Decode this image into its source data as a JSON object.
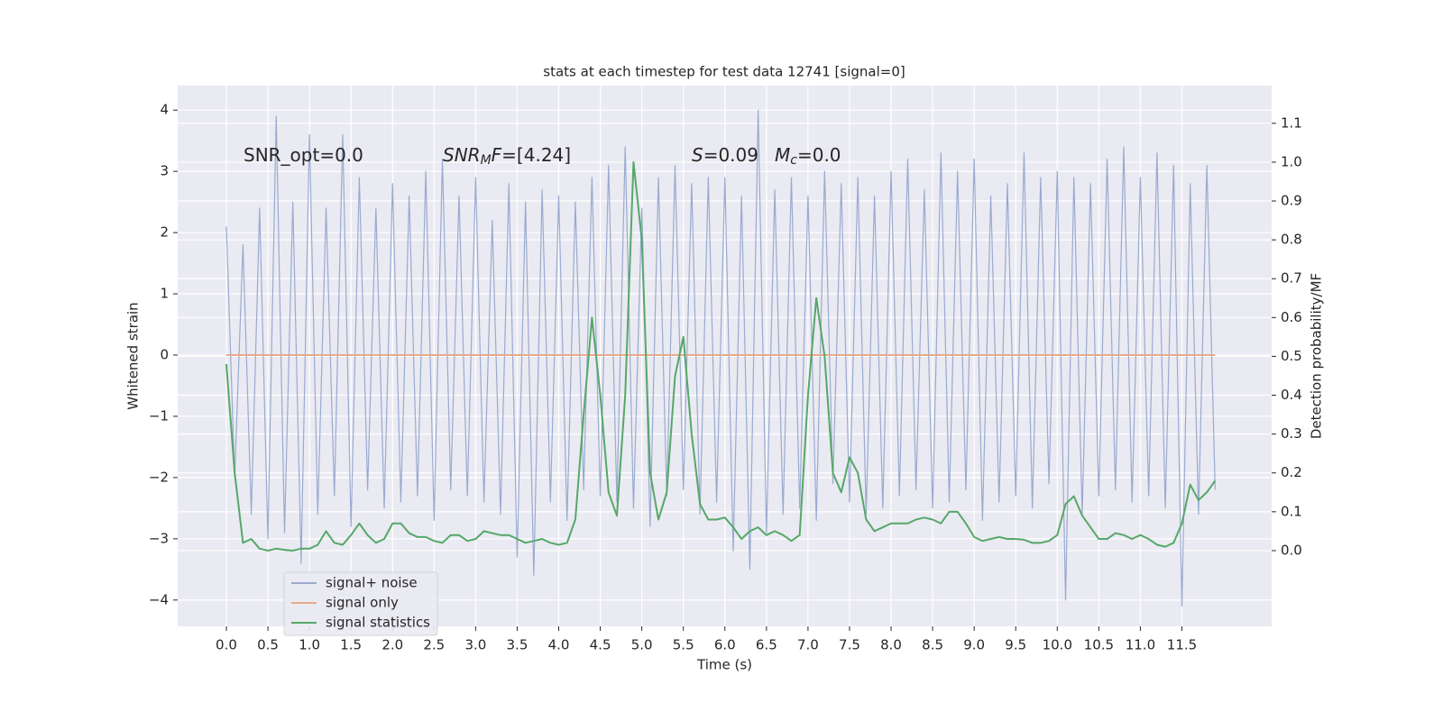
{
  "chart_data": {
    "type": "line",
    "title": "stats at each timestep for test data 12741 [signal=0]",
    "xlabel": "Time (s)",
    "ylabel": "Whitened strain",
    "y2label": "Detection probability/MF",
    "grid": true,
    "legend": "lower left",
    "xlim": [
      -0.586,
      12.58
    ],
    "ylim": [
      -4.43,
      4.4
    ],
    "y2lim": [
      -0.195,
      1.197
    ],
    "xticks": [
      {
        "value": 0,
        "label": "0.0"
      },
      0.5,
      {
        "value": 1,
        "label": "1.0"
      },
      1.5,
      {
        "value": 2,
        "label": "2.0"
      },
      2.5,
      {
        "value": 3,
        "label": "3.0"
      },
      3.5,
      {
        "value": 4,
        "label": "4.0"
      },
      4.5,
      {
        "value": 5,
        "label": "5.0"
      },
      5.5,
      {
        "value": 6,
        "label": "6.0"
      },
      6.5,
      {
        "value": 7,
        "label": "7.0"
      },
      7.5,
      {
        "value": 8,
        "label": "8.0"
      },
      8.5,
      {
        "value": 9,
        "label": "9.0"
      },
      9.5,
      {
        "value": 10,
        "label": "10.0"
      },
      10.5,
      {
        "value": 11,
        "label": "11.0"
      },
      11.5
    ],
    "yticks": [
      {
        "value": -4,
        "label": "−4"
      },
      {
        "value": -3,
        "label": "−3"
      },
      {
        "value": -2,
        "label": "−2"
      },
      {
        "value": -1,
        "label": "−1"
      },
      0,
      1,
      2,
      3,
      4
    ],
    "y2ticks": [
      {
        "value": 0,
        "label": "0.0"
      },
      0.1,
      0.2,
      0.3,
      0.4,
      0.5,
      0.6,
      0.7,
      0.8,
      0.9,
      {
        "value": 1,
        "label": "1.0"
      },
      1.1
    ],
    "annotations": [
      {
        "parts": [
          {
            "text": "SNR_opt=0.0"
          }
        ]
      },
      {
        "parts": [
          {
            "text": "SNR",
            "italic": true
          },
          {
            "text": "M",
            "italic": true,
            "sub": true
          },
          {
            "text": "F",
            "italic": true
          },
          {
            "text": "=[4.24]"
          }
        ]
      },
      {
        "parts": [
          {
            "text": "S",
            "italic": true
          },
          {
            "text": "=0.09"
          }
        ]
      },
      {
        "parts": [
          {
            "text": "M",
            "italic": true
          },
          {
            "text": "c",
            "italic": true,
            "sub": true
          },
          {
            "text": "=0.0"
          }
        ]
      }
    ],
    "x": [
      0.0,
      0.1,
      0.2,
      0.3,
      0.4,
      0.5,
      0.6,
      0.7,
      0.8,
      0.9,
      1.0,
      1.1,
      1.2,
      1.3,
      1.4,
      1.5,
      1.6,
      1.7,
      1.8,
      1.9,
      2.0,
      2.1,
      2.2,
      2.3,
      2.4,
      2.5,
      2.6,
      2.7,
      2.8,
      2.9,
      3.0,
      3.1,
      3.2,
      3.3,
      3.4,
      3.5,
      3.6,
      3.7,
      3.8,
      3.9,
      4.0,
      4.1,
      4.2,
      4.3,
      4.4,
      4.5,
      4.6,
      4.7,
      4.8,
      4.9,
      5.0,
      5.1,
      5.2,
      5.3,
      5.4,
      5.5,
      5.6,
      5.7,
      5.8,
      5.9,
      6.0,
      6.1,
      6.2,
      6.3,
      6.4,
      6.5,
      6.6,
      6.7,
      6.8,
      6.9,
      7.0,
      7.1,
      7.2,
      7.3,
      7.4,
      7.5,
      7.6,
      7.7,
      7.8,
      7.9,
      8.0,
      8.1,
      8.2,
      8.3,
      8.4,
      8.5,
      8.6,
      8.7,
      8.8,
      8.9,
      9.0,
      9.1,
      9.2,
      9.3,
      9.4,
      9.5,
      9.6,
      9.7,
      9.8,
      9.9,
      10.0,
      10.1,
      10.2,
      10.3,
      10.4,
      10.5,
      10.6,
      10.7,
      10.8,
      10.9,
      11.0,
      11.1,
      11.2,
      11.3,
      11.4,
      11.5,
      11.6,
      11.7,
      11.8,
      11.9
    ],
    "series": [
      {
        "name": "signal+ noise",
        "color": "#9aaad0",
        "values": [
          2.1,
          -2.0,
          1.8,
          -2.6,
          2.4,
          -3.0,
          3.9,
          -2.9,
          2.5,
          -3.4,
          3.6,
          -2.6,
          2.4,
          -2.3,
          3.6,
          -2.8,
          2.9,
          -2.2,
          2.4,
          -2.5,
          2.8,
          -2.4,
          2.6,
          -2.3,
          3.0,
          -2.7,
          3.2,
          -2.2,
          2.6,
          -2.3,
          2.9,
          -2.4,
          2.2,
          -2.6,
          2.8,
          -3.3,
          2.5,
          -3.6,
          2.7,
          -2.4,
          2.6,
          -2.7,
          2.5,
          -2.2,
          2.9,
          -2.3,
          3.1,
          -2.4,
          3.4,
          -2.5,
          2.4,
          -2.8,
          2.9,
          -2.3,
          3.1,
          -2.2,
          2.8,
          -2.6,
          2.9,
          -2.4,
          2.9,
          -3.2,
          2.6,
          -3.5,
          4.0,
          -2.9,
          2.7,
          -2.6,
          2.9,
          -2.5,
          2.6,
          -2.7,
          3.0,
          -2.1,
          2.8,
          -2.4,
          2.9,
          -2.6,
          2.6,
          -2.5,
          3.0,
          -2.3,
          3.2,
          -2.2,
          2.7,
          -2.5,
          3.3,
          -2.4,
          3.0,
          -2.2,
          3.2,
          -2.7,
          2.6,
          -2.4,
          2.8,
          -2.3,
          3.3,
          -2.5,
          2.9,
          -2.1,
          3.0,
          -4.0,
          2.9,
          -2.6,
          2.8,
          -2.3,
          3.2,
          -2.2,
          3.4,
          -2.4,
          2.9,
          -2.3,
          3.3,
          -2.5,
          3.1,
          -4.1,
          2.8,
          -2.6,
          3.1,
          -2.2
        ]
      },
      {
        "name": "signal only",
        "color": "#e8a98c",
        "values": [
          0,
          0,
          0,
          0,
          0,
          0,
          0,
          0,
          0,
          0,
          0,
          0,
          0,
          0,
          0,
          0,
          0,
          0,
          0,
          0,
          0,
          0,
          0,
          0,
          0,
          0,
          0,
          0,
          0,
          0,
          0,
          0,
          0,
          0,
          0,
          0,
          0,
          0,
          0,
          0,
          0,
          0,
          0,
          0,
          0,
          0,
          0,
          0,
          0,
          0,
          0,
          0,
          0,
          0,
          0,
          0,
          0,
          0,
          0,
          0,
          0,
          0,
          0,
          0,
          0,
          0,
          0,
          0,
          0,
          0,
          0,
          0,
          0,
          0,
          0,
          0,
          0,
          0,
          0,
          0,
          0,
          0,
          0,
          0,
          0,
          0,
          0,
          0,
          0,
          0,
          0,
          0,
          0,
          0,
          0,
          0,
          0,
          0,
          0,
          0,
          0,
          0,
          0,
          0,
          0,
          0,
          0,
          0,
          0,
          0,
          0,
          0,
          0,
          0,
          0,
          0,
          0,
          0,
          0,
          0
        ]
      },
      {
        "name": "signal statistics",
        "color": "#55a868",
        "axis": "y2",
        "values": [
          0.48,
          0.2,
          0.02,
          0.03,
          0.005,
          0.0,
          0.005,
          0.002,
          0.0,
          0.005,
          0.005,
          0.015,
          0.05,
          0.02,
          0.015,
          0.04,
          0.07,
          0.04,
          0.02,
          0.03,
          0.07,
          0.07,
          0.045,
          0.035,
          0.035,
          0.025,
          0.02,
          0.04,
          0.04,
          0.025,
          0.03,
          0.05,
          0.045,
          0.04,
          0.04,
          0.03,
          0.02,
          0.025,
          0.03,
          0.02,
          0.015,
          0.02,
          0.08,
          0.35,
          0.6,
          0.4,
          0.15,
          0.09,
          0.4,
          1.0,
          0.8,
          0.2,
          0.08,
          0.15,
          0.45,
          0.55,
          0.3,
          0.12,
          0.08,
          0.08,
          0.085,
          0.06,
          0.03,
          0.05,
          0.06,
          0.04,
          0.05,
          0.04,
          0.025,
          0.04,
          0.4,
          0.65,
          0.5,
          0.2,
          0.15,
          0.24,
          0.2,
          0.08,
          0.05,
          0.06,
          0.07,
          0.07,
          0.07,
          0.08,
          0.085,
          0.08,
          0.07,
          0.1,
          0.1,
          0.07,
          0.035,
          0.025,
          0.03,
          0.035,
          0.03,
          0.03,
          0.028,
          0.02,
          0.02,
          0.025,
          0.04,
          0.12,
          0.14,
          0.09,
          0.06,
          0.03,
          0.03,
          0.045,
          0.04,
          0.03,
          0.04,
          0.03,
          0.015,
          0.01,
          0.02,
          0.07,
          0.17,
          0.13,
          0.15,
          0.18
        ]
      }
    ]
  }
}
